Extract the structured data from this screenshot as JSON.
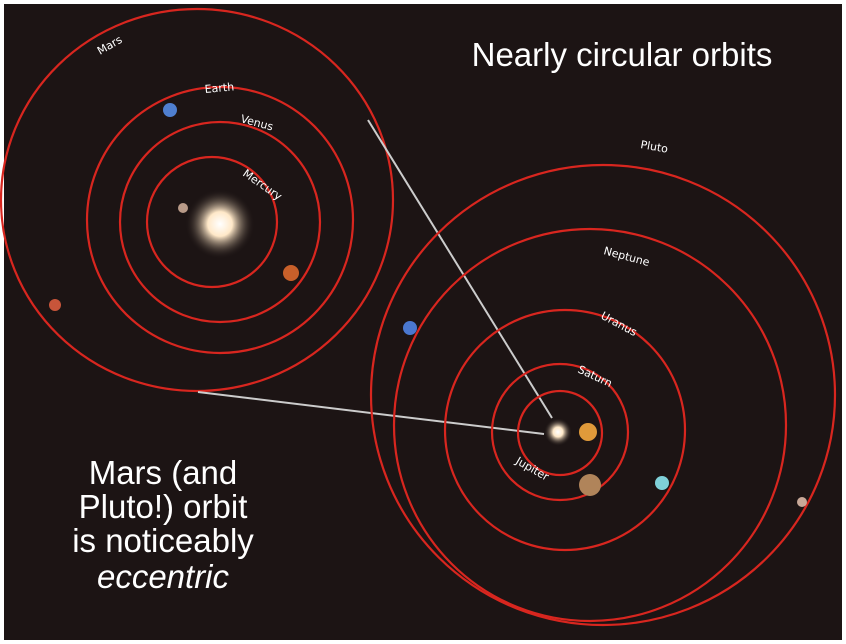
{
  "title": "Nearly circular orbits",
  "caption": {
    "lines": [
      "Mars (and",
      "Pluto!) orbit",
      "is noticeably"
    ],
    "emphasis": "eccentric"
  },
  "inner_system": {
    "labels": [
      "Mars",
      "Earth",
      "Venus",
      "Mercury"
    ]
  },
  "outer_system": {
    "labels": [
      "Pluto",
      "Neptune",
      "Uranus",
      "Saturn",
      "Jupiter"
    ]
  }
}
